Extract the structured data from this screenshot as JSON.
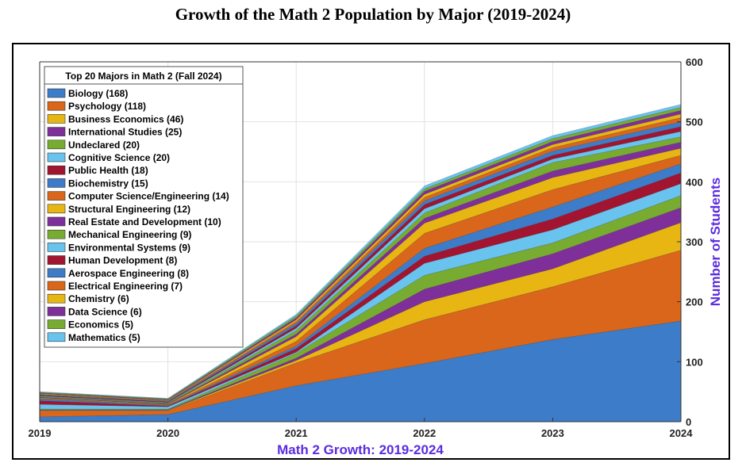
{
  "title": "Growth of the Math 2 Population by Major (2019-2024)",
  "chart_data": {
    "type": "area",
    "stacked": true,
    "x": [
      2019,
      2020,
      2021,
      2022,
      2023,
      2024
    ],
    "x_tick_labels": [
      "2019",
      "2020",
      "2021",
      "2022",
      "2023",
      "2024"
    ],
    "xlabel": "Math 2 Growth: 2019-2024",
    "ylabel": "Number of Students",
    "y_axis_side": "right",
    "ylim": [
      0,
      600
    ],
    "y_ticks": [
      0,
      100,
      200,
      300,
      400,
      500,
      600
    ],
    "grid": true,
    "legend_title": "Top 20 Majors in Math 2 (Fall 2024)",
    "legend_placement": "top-left",
    "series": [
      {
        "name": "Biology (168)",
        "color": "#3d7cc9",
        "values": [
          8,
          12,
          60,
          97,
          137,
          168
        ]
      },
      {
        "name": "Psychology (118)",
        "color": "#d9661a",
        "values": [
          10,
          6,
          38,
          73,
          88,
          118
        ]
      },
      {
        "name": "Business Economics (46)",
        "color": "#e8b612",
        "values": [
          1,
          1,
          4,
          30,
          30,
          46
        ]
      },
      {
        "name": "International Studies (25)",
        "color": "#7f2f99",
        "values": [
          1,
          1,
          4,
          21,
          25,
          25
        ]
      },
      {
        "name": "Undeclared (20)",
        "color": "#77ac30",
        "values": [
          1,
          1,
          8,
          23,
          18,
          20
        ]
      },
      {
        "name": "Cognitive Science (20)",
        "color": "#68c3ee",
        "values": [
          8,
          4,
          2,
          20,
          22,
          20
        ]
      },
      {
        "name": "Public Health (18)",
        "color": "#a2142f",
        "values": [
          6,
          1,
          6,
          12,
          18,
          18
        ]
      },
      {
        "name": "Biochemistry (15)",
        "color": "#3d7cc9",
        "values": [
          3,
          1,
          4,
          13,
          20,
          15
        ]
      },
      {
        "name": "Computer Science/Engineering (14)",
        "color": "#d9661a",
        "values": [
          1,
          1,
          8,
          25,
          29,
          14
        ]
      },
      {
        "name": "Structural Engineering (12)",
        "color": "#e8b612",
        "values": [
          1,
          1,
          8,
          17,
          20,
          12
        ]
      },
      {
        "name": "Real Estate and Development (10)",
        "color": "#7f2f99",
        "values": [
          1,
          1,
          4,
          8,
          11,
          10
        ]
      },
      {
        "name": "Mechanical Engineering (9)",
        "color": "#77ac30",
        "values": [
          1,
          1,
          6,
          9,
          14,
          9
        ]
      },
      {
        "name": "Environmental Systems (9)",
        "color": "#68c3ee",
        "values": [
          1,
          1,
          4,
          7,
          6,
          9
        ]
      },
      {
        "name": "Human Development (8)",
        "color": "#a2142f",
        "values": [
          1,
          1,
          4,
          7,
          6,
          8
        ]
      },
      {
        "name": "Aerospace Engineering (8)",
        "color": "#3d7cc9",
        "values": [
          1,
          1,
          4,
          6,
          7,
          8
        ]
      },
      {
        "name": "Electrical Engineering (7)",
        "color": "#d9661a",
        "values": [
          1,
          1,
          3,
          6,
          6,
          7
        ]
      },
      {
        "name": "Chemistry (6)",
        "color": "#e8b612",
        "values": [
          1,
          1,
          3,
          5,
          5,
          6
        ]
      },
      {
        "name": "Data Science (6)",
        "color": "#7f2f99",
        "values": [
          1,
          1,
          3,
          5,
          5,
          6
        ]
      },
      {
        "name": "Economics (5)",
        "color": "#77ac30",
        "values": [
          1,
          1,
          3,
          4,
          5,
          5
        ]
      },
      {
        "name": "Mathematics (5)",
        "color": "#68c3ee",
        "values": [
          1,
          1,
          3,
          5,
          5,
          5
        ]
      }
    ]
  }
}
